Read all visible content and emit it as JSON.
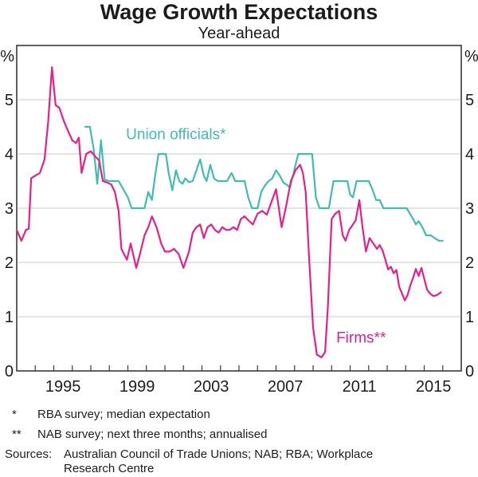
{
  "page": {
    "title": "Wage Growth Expectations",
    "subtitle": "Year-ahead",
    "footnotes": [
      {
        "marker": "*",
        "text": "RBA survey; median expectation"
      },
      {
        "marker": "**",
        "text": "NAB survey; next three months; annualised"
      }
    ],
    "sources_label": "Sources:",
    "sources_text": "Australian Council of Trade Unions; NAB; RBA; Workplace Research Centre"
  },
  "colors": {
    "firms": "#e81e8c",
    "union": "#3fbdb0",
    "grid": "#c9c9c9",
    "axis": "#3a3a3a",
    "text": "#1c1c1c"
  },
  "chart_data": {
    "type": "line",
    "title": "Wage Growth Expectations",
    "subtitle": "Year-ahead",
    "unit": "%",
    "x_range": [
      1993,
      2017
    ],
    "y_range": [
      0,
      6
    ],
    "y_ticks": [
      0,
      1,
      2,
      3,
      4,
      5
    ],
    "x_tick_years_labeled": [
      1995,
      1999,
      2003,
      2007,
      2011,
      2015
    ],
    "grid": "horizontal",
    "legend_position": "inline-labels",
    "series": [
      {
        "id": "union-officials",
        "label": "Union officials*",
        "color": "#3fbdb0",
        "label_x": 1998.9,
        "label_y": 4.27,
        "points": [
          [
            1996.7,
            4.5
          ],
          [
            1996.95,
            4.5
          ],
          [
            1997.15,
            4.1
          ],
          [
            1997.35,
            3.45
          ],
          [
            1997.55,
            4.25
          ],
          [
            1997.75,
            3.52
          ],
          [
            1998.0,
            3.5
          ],
          [
            1998.25,
            3.5
          ],
          [
            1998.5,
            3.5
          ],
          [
            1998.75,
            3.35
          ],
          [
            1999.0,
            3.2
          ],
          [
            1999.2,
            3.0
          ],
          [
            1999.45,
            3.0
          ],
          [
            1999.7,
            3.0
          ],
          [
            1999.9,
            3.0
          ],
          [
            2000.1,
            3.3
          ],
          [
            2000.3,
            3.15
          ],
          [
            2000.45,
            3.55
          ],
          [
            2000.65,
            4.0
          ],
          [
            2000.85,
            4.0
          ],
          [
            2001.05,
            4.0
          ],
          [
            2001.2,
            3.65
          ],
          [
            2001.4,
            3.33
          ],
          [
            2001.6,
            3.7
          ],
          [
            2001.78,
            3.5
          ],
          [
            2001.95,
            3.45
          ],
          [
            2002.1,
            3.55
          ],
          [
            2002.3,
            3.48
          ],
          [
            2002.5,
            3.5
          ],
          [
            2002.9,
            3.9
          ],
          [
            2003.1,
            3.6
          ],
          [
            2003.25,
            3.5
          ],
          [
            2003.45,
            3.8
          ],
          [
            2003.65,
            3.55
          ],
          [
            2003.85,
            3.5
          ],
          [
            2004.1,
            3.5
          ],
          [
            2004.35,
            3.5
          ],
          [
            2004.6,
            3.65
          ],
          [
            2004.8,
            3.5
          ],
          [
            2005.05,
            3.5
          ],
          [
            2005.3,
            3.5
          ],
          [
            2005.5,
            3.2
          ],
          [
            2005.7,
            3.0
          ],
          [
            2006.0,
            3.0
          ],
          [
            2006.2,
            3.3
          ],
          [
            2006.4,
            3.42
          ],
          [
            2006.6,
            3.5
          ],
          [
            2006.8,
            3.55
          ],
          [
            2007.0,
            3.7
          ],
          [
            2007.2,
            3.6
          ],
          [
            2007.4,
            3.47
          ],
          [
            2007.6,
            3.43
          ],
          [
            2007.75,
            3.38
          ],
          [
            2007.95,
            3.65
          ],
          [
            2008.05,
            3.8
          ],
          [
            2008.2,
            4.0
          ],
          [
            2008.45,
            4.0
          ],
          [
            2008.7,
            4.0
          ],
          [
            2008.95,
            4.0
          ],
          [
            2009.15,
            3.2
          ],
          [
            2009.35,
            3.0
          ],
          [
            2009.6,
            3.0
          ],
          [
            2009.85,
            3.0
          ],
          [
            2010.1,
            3.5
          ],
          [
            2010.35,
            3.5
          ],
          [
            2010.6,
            3.5
          ],
          [
            2010.85,
            3.5
          ],
          [
            2011.0,
            3.25
          ],
          [
            2011.15,
            3.2
          ],
          [
            2011.35,
            3.5
          ],
          [
            2011.55,
            3.5
          ],
          [
            2011.75,
            3.5
          ],
          [
            2012.0,
            3.5
          ],
          [
            2012.2,
            3.35
          ],
          [
            2012.4,
            3.15
          ],
          [
            2012.6,
            3.15
          ],
          [
            2012.8,
            3.0
          ],
          [
            2013.05,
            3.0
          ],
          [
            2013.3,
            3.0
          ],
          [
            2013.55,
            3.0
          ],
          [
            2013.8,
            3.0
          ],
          [
            2014.05,
            3.0
          ],
          [
            2014.4,
            2.8
          ],
          [
            2014.55,
            2.7
          ],
          [
            2014.7,
            2.76
          ],
          [
            2014.9,
            2.65
          ],
          [
            2015.1,
            2.5
          ],
          [
            2015.35,
            2.5
          ],
          [
            2015.55,
            2.45
          ],
          [
            2015.8,
            2.4
          ],
          [
            2016.0,
            2.4
          ]
        ]
      },
      {
        "id": "firms",
        "label": "Firms**",
        "color": "#e81e8c",
        "label_x": 2010.25,
        "label_y": 0.52,
        "points": [
          [
            1993.0,
            2.6
          ],
          [
            1993.25,
            2.4
          ],
          [
            1993.5,
            2.6
          ],
          [
            1993.65,
            2.62
          ],
          [
            1993.78,
            3.55
          ],
          [
            1994.0,
            3.6
          ],
          [
            1994.25,
            3.65
          ],
          [
            1994.5,
            3.9
          ],
          [
            1994.7,
            4.6
          ],
          [
            1994.9,
            5.6
          ],
          [
            1995.1,
            4.9
          ],
          [
            1995.3,
            4.85
          ],
          [
            1995.55,
            4.6
          ],
          [
            1995.8,
            4.4
          ],
          [
            1996.0,
            4.25
          ],
          [
            1996.2,
            4.2
          ],
          [
            1996.35,
            4.3
          ],
          [
            1996.5,
            3.65
          ],
          [
            1996.75,
            4.0
          ],
          [
            1997.0,
            4.05
          ],
          [
            1997.25,
            3.95
          ],
          [
            1997.45,
            3.88
          ],
          [
            1997.65,
            3.5
          ],
          [
            1997.9,
            3.47
          ],
          [
            1998.1,
            3.44
          ],
          [
            1998.3,
            3.3
          ],
          [
            1998.5,
            2.95
          ],
          [
            1998.65,
            2.25
          ],
          [
            1998.95,
            2.05
          ],
          [
            1999.15,
            2.35
          ],
          [
            1999.45,
            1.9
          ],
          [
            1999.65,
            2.15
          ],
          [
            1999.9,
            2.5
          ],
          [
            2000.1,
            2.65
          ],
          [
            2000.3,
            2.85
          ],
          [
            2000.55,
            2.65
          ],
          [
            2000.8,
            2.35
          ],
          [
            2001.0,
            2.2
          ],
          [
            2001.25,
            2.2
          ],
          [
            2001.5,
            2.25
          ],
          [
            2001.75,
            2.15
          ],
          [
            2002.0,
            1.9
          ],
          [
            2002.3,
            2.2
          ],
          [
            2002.5,
            2.55
          ],
          [
            2002.7,
            2.65
          ],
          [
            2002.9,
            2.7
          ],
          [
            2003.1,
            2.45
          ],
          [
            2003.3,
            2.65
          ],
          [
            2003.5,
            2.7
          ],
          [
            2003.7,
            2.6
          ],
          [
            2003.9,
            2.55
          ],
          [
            2004.1,
            2.65
          ],
          [
            2004.3,
            2.6
          ],
          [
            2004.5,
            2.6
          ],
          [
            2004.7,
            2.65
          ],
          [
            2004.9,
            2.6
          ],
          [
            2005.1,
            2.8
          ],
          [
            2005.3,
            2.85
          ],
          [
            2005.5,
            2.78
          ],
          [
            2005.75,
            2.7
          ],
          [
            2006.0,
            2.9
          ],
          [
            2006.25,
            2.95
          ],
          [
            2006.5,
            2.88
          ],
          [
            2007.0,
            3.35
          ],
          [
            2007.3,
            2.65
          ],
          [
            2007.55,
            3.05
          ],
          [
            2007.8,
            3.5
          ],
          [
            2008.05,
            3.7
          ],
          [
            2008.3,
            3.8
          ],
          [
            2008.45,
            3.65
          ],
          [
            2008.6,
            3.3
          ],
          [
            2008.8,
            2.0
          ],
          [
            2009.0,
            0.8
          ],
          [
            2009.2,
            0.3
          ],
          [
            2009.45,
            0.25
          ],
          [
            2009.65,
            0.35
          ],
          [
            2009.8,
            1.2
          ],
          [
            2010.0,
            2.8
          ],
          [
            2010.2,
            2.9
          ],
          [
            2010.4,
            2.95
          ],
          [
            2010.6,
            2.5
          ],
          [
            2010.75,
            2.4
          ],
          [
            2010.95,
            2.6
          ],
          [
            2011.15,
            2.7
          ],
          [
            2011.3,
            2.78
          ],
          [
            2011.5,
            3.15
          ],
          [
            2011.65,
            2.7
          ],
          [
            2011.85,
            2.2
          ],
          [
            2012.05,
            2.45
          ],
          [
            2012.25,
            2.35
          ],
          [
            2012.45,
            2.25
          ],
          [
            2012.6,
            2.32
          ],
          [
            2012.75,
            2.22
          ],
          [
            2012.9,
            2.05
          ],
          [
            2013.05,
            1.87
          ],
          [
            2013.2,
            1.92
          ],
          [
            2013.35,
            1.8
          ],
          [
            2013.5,
            1.86
          ],
          [
            2013.65,
            1.55
          ],
          [
            2013.8,
            1.43
          ],
          [
            2013.95,
            1.3
          ],
          [
            2014.1,
            1.4
          ],
          [
            2014.25,
            1.58
          ],
          [
            2014.4,
            1.72
          ],
          [
            2014.55,
            1.88
          ],
          [
            2014.7,
            1.75
          ],
          [
            2014.85,
            1.9
          ],
          [
            2015.0,
            1.7
          ],
          [
            2015.15,
            1.5
          ],
          [
            2015.3,
            1.43
          ],
          [
            2015.5,
            1.38
          ],
          [
            2015.7,
            1.4
          ],
          [
            2015.9,
            1.45
          ]
        ]
      }
    ]
  }
}
